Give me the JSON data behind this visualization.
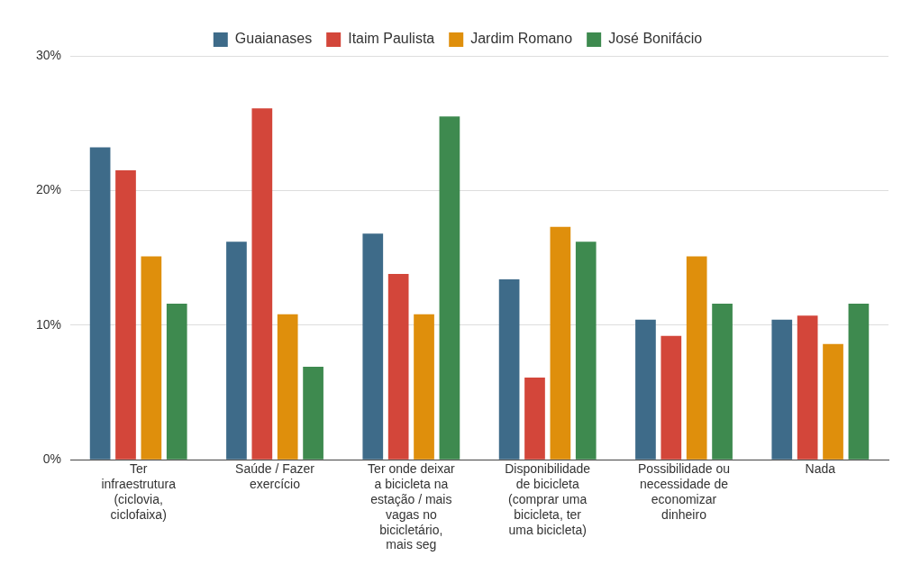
{
  "chart_data": {
    "type": "bar",
    "categories": [
      "Ter infraestrutura (ciclovia, ciclofaixa)",
      "Saúde / Fazer exercício",
      "Ter onde deixar a bicicleta na estação / mais vagas no bicicletário, mais seg",
      "Disponibilidade de bicicleta (comprar uma bicicleta, ter uma bicicleta)",
      "Possibilidade ou necessidade de economizar dinheiro",
      "Nada"
    ],
    "series": [
      {
        "name": "Guaianases",
        "color": "#3e6b89",
        "values": [
          23.2,
          16.2,
          16.8,
          13.4,
          10.4,
          10.4
        ]
      },
      {
        "name": "Itaim Paulista",
        "color": "#d3463a",
        "values": [
          21.5,
          26.1,
          13.8,
          6.1,
          9.2,
          10.7
        ]
      },
      {
        "name": "Jardim Romano",
        "color": "#df8f0c",
        "values": [
          15.1,
          10.8,
          10.8,
          17.3,
          15.1,
          8.6
        ]
      },
      {
        "name": "José Bonifácio",
        "color": "#3e8a4f",
        "values": [
          11.6,
          6.9,
          25.5,
          16.2,
          11.6,
          11.6
        ]
      }
    ],
    "ylim": [
      0,
      30
    ],
    "yticks": [
      {
        "value": 0,
        "label": "0%"
      },
      {
        "value": 10,
        "label": "10%"
      },
      {
        "value": 20,
        "label": "20%"
      },
      {
        "value": 30,
        "label": "30%"
      }
    ],
    "grid": "y",
    "legend": "top"
  }
}
